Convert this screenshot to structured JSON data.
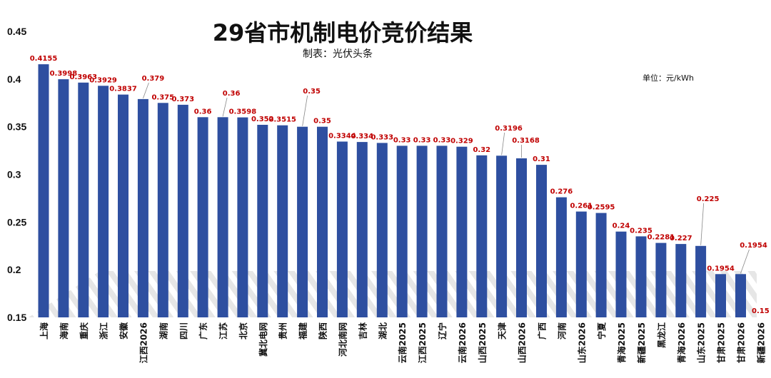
{
  "chart_data": {
    "type": "bar",
    "title": "29省市机制电价竞价结果",
    "subtitle": "制表：光伏头条",
    "unit_label": "单位：元/kWh",
    "ylim": [
      0.15,
      0.45
    ],
    "yticks": [
      "0.45",
      "0.4",
      "0.35",
      "0.3",
      "0.25",
      "0.2",
      "0.15"
    ],
    "ytick_values": [
      0.45,
      0.4,
      0.35,
      0.3,
      0.25,
      0.2,
      0.15
    ],
    "bar_color": "#2e4fa0",
    "label_color": "#c00000",
    "categories": [
      "上海",
      "海南",
      "重庆",
      "浙江",
      "安徽",
      "江西2026",
      "湖南",
      "四川",
      "广东",
      "江苏",
      "北京",
      "冀北电网",
      "贵州",
      "福建",
      "陕西",
      "河北南网",
      "吉林",
      "湖北",
      "云南2025",
      "江西2025",
      "辽宁",
      "云南2026",
      "山西2025",
      "天津",
      "山西2026",
      "广西",
      "河南",
      "山东2026",
      "宁夏",
      "青海2025",
      "新疆2025",
      "黑龙江",
      "青海2026",
      "山东2025",
      "甘肃2025",
      "甘肃2026",
      "新疆2026"
    ],
    "values": [
      0.4155,
      0.3998,
      0.3963,
      0.3929,
      0.3837,
      0.379,
      0.375,
      0.373,
      0.36,
      0.36,
      0.3598,
      0.352,
      0.3515,
      0.35,
      0.35,
      0.3344,
      0.334,
      0.333,
      0.33,
      0.33,
      0.33,
      0.329,
      0.32,
      0.3196,
      0.3168,
      0.31,
      0.276,
      0.261,
      0.2595,
      0.24,
      0.235,
      0.2281,
      0.227,
      0.225,
      0.1954,
      0.1954,
      0.15
    ],
    "value_labels": [
      "0.4155",
      "0.3998",
      "0.3963",
      "0.3929",
      "0.3837",
      "0.379",
      "0.375",
      "0.373",
      "0.36",
      "0.36",
      "0.3598",
      "0.352",
      "0.3515",
      "0.35",
      "0.35",
      "0.3344",
      "0.334",
      "0.333",
      "0.33",
      "0.33",
      "0.33",
      "0.329",
      "0.32",
      "0.3196",
      "0.3168",
      "0.31",
      "0.276",
      "0.261",
      "0.2595",
      "0.24",
      "0.235",
      "0.2281",
      "0.227",
      "0.225",
      "0.1954",
      "0.1954",
      "0.15"
    ]
  }
}
